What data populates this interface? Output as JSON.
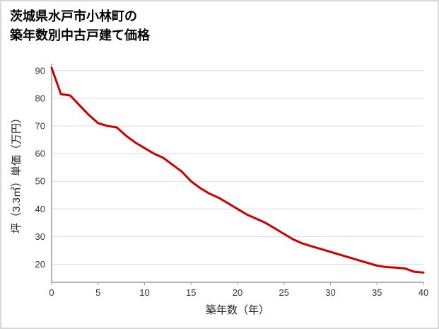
{
  "header": {
    "title_line1": "茨城県水戸市小林町の",
    "title_line2": "築年数別中古戸建て価格"
  },
  "chart_data": {
    "type": "line",
    "title": "茨城県水戸市小林町の築年数別中古戸建て価格",
    "xlabel": "築年数（年）",
    "ylabel": "坪（3.3㎡）単価（万円）",
    "x": [
      0,
      1,
      2,
      3,
      4,
      5,
      6,
      7,
      8,
      9,
      10,
      11,
      12,
      13,
      14,
      15,
      16,
      17,
      18,
      19,
      20,
      21,
      22,
      23,
      24,
      25,
      26,
      27,
      28,
      29,
      30,
      31,
      32,
      33,
      34,
      35,
      36,
      37,
      38,
      39,
      40
    ],
    "y": [
      91,
      81.5,
      81,
      77.5,
      74,
      71,
      70,
      69.5,
      66.5,
      64,
      62,
      60,
      58.5,
      56,
      53.5,
      50,
      47.5,
      45.5,
      44,
      42,
      40,
      38,
      36.5,
      35,
      33,
      31,
      29,
      27.5,
      26.5,
      25.5,
      24.5,
      23.5,
      22.5,
      21.5,
      20.5,
      19.5,
      19,
      18.8,
      18.5,
      17.3,
      17
    ],
    "xlim": [
      0,
      40
    ],
    "ylim": [
      13.5,
      92.5
    ],
    "xticks": [
      0,
      5,
      10,
      15,
      20,
      25,
      30,
      35,
      40
    ],
    "yticks": [
      20,
      30,
      40,
      50,
      60,
      70,
      80,
      90
    ],
    "grid": "horizontal",
    "legend": "none",
    "colors": {
      "line": "#cc0000",
      "grid": "#dcdcdc",
      "axis": "#9a9a9a",
      "tick_text": "#333333",
      "label_text": "#222222"
    }
  }
}
